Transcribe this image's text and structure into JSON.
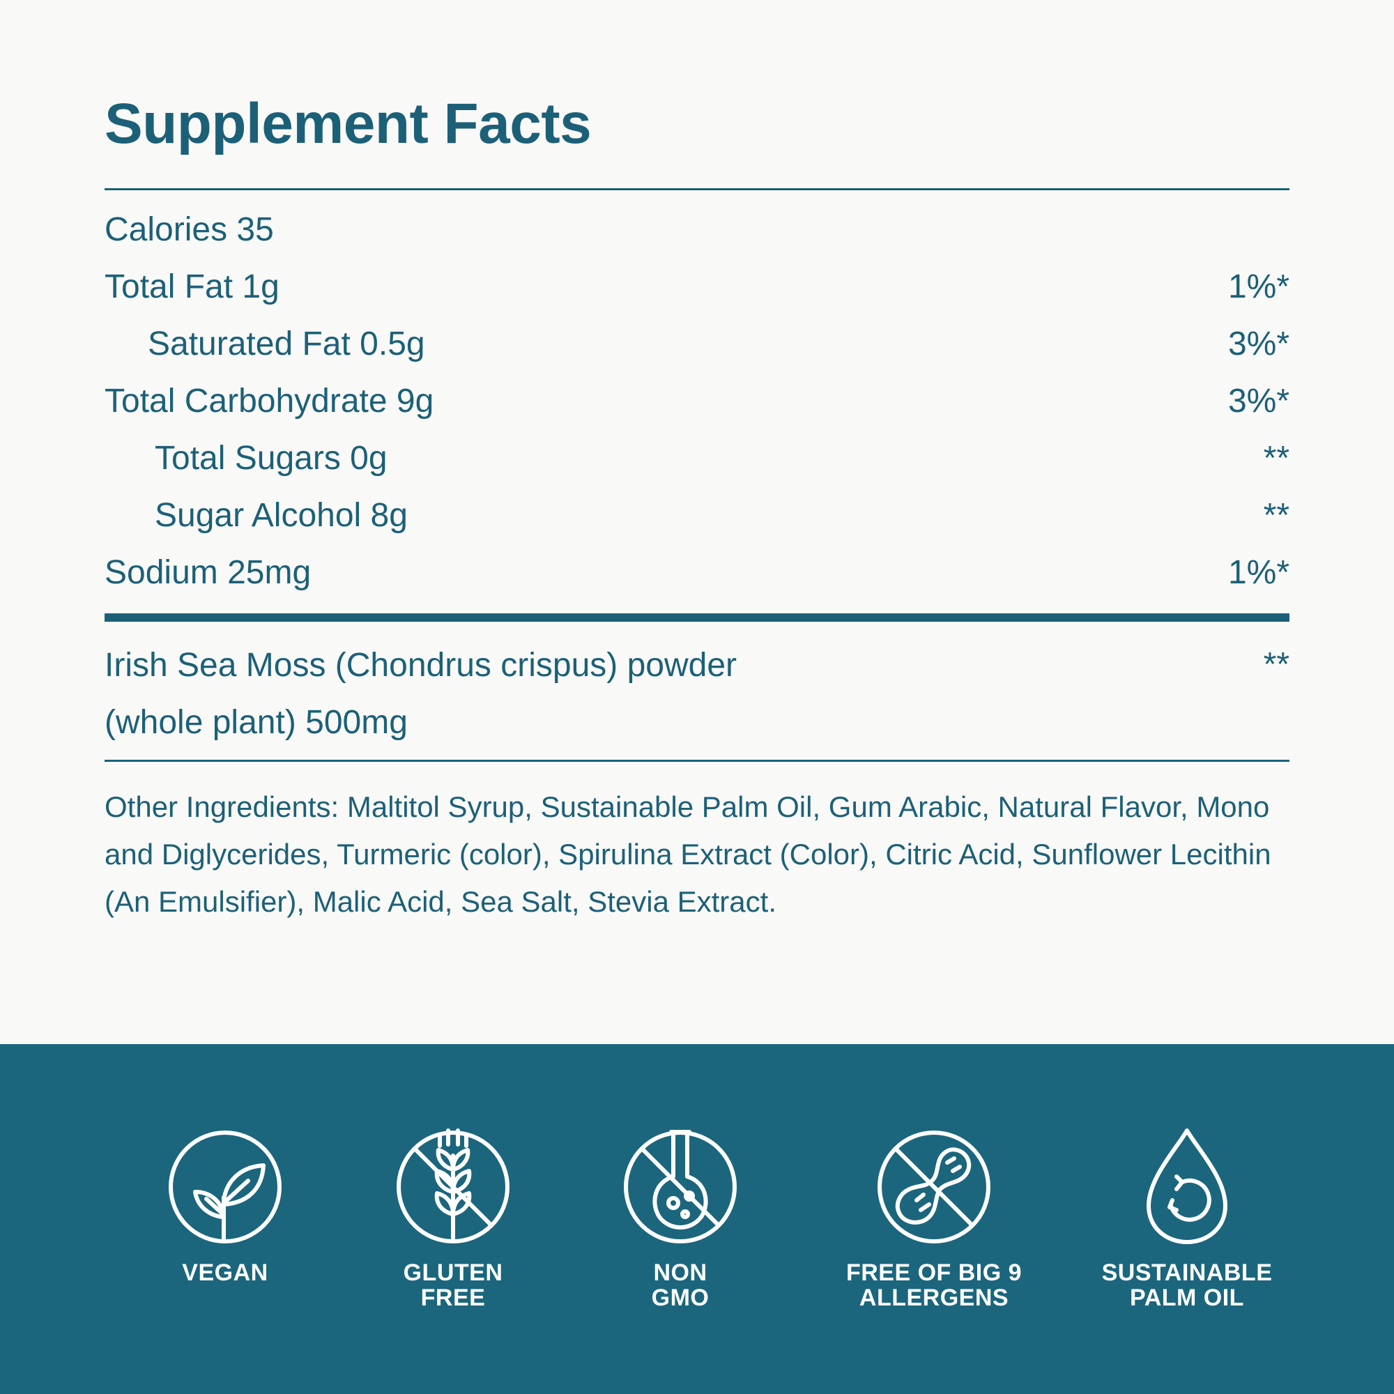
{
  "title": "Supplement Facts",
  "nutrients": [
    {
      "label": "Calories 35",
      "dv": ""
    },
    {
      "label": "Total Fat 1g",
      "dv": "1%*"
    },
    {
      "label": "Saturated Fat 0.5g",
      "dv": "3%*"
    },
    {
      "label": "Total Carbohydrate 9g",
      "dv": "3%*"
    },
    {
      "label": "Total Sugars 0g",
      "dv": "**"
    },
    {
      "label": "Sugar Alcohol 8g",
      "dv": "**"
    },
    {
      "label": "Sodium 25mg",
      "dv": "1%*"
    }
  ],
  "main_ingredient": {
    "line1": "Irish Sea Moss (Chondrus crispus) powder",
    "line2": "(whole plant) 500mg",
    "dv": "**"
  },
  "other_ingredients": "Other Ingredients: Maltitol Syrup, Sustainable Palm Oil, Gum Arabic, Natural Flavor, Mono and Diglycerides, Turmeric (color), Spirulina Extract (Color), Citric Acid, Sunflower Lecithin (An Emulsifier), Malic Acid, Sea Salt, Stevia Extract.",
  "badges": [
    {
      "icon": "vegan-leaf-icon",
      "label": "VEGAN"
    },
    {
      "icon": "gluten-free-wheat-icon",
      "label": "GLUTEN\nFREE"
    },
    {
      "icon": "non-gmo-flask-icon",
      "label": "NON\nGMO"
    },
    {
      "icon": "allergen-free-peanut-icon",
      "label": "FREE OF BIG 9\nALLERGENS"
    },
    {
      "icon": "sustainable-palm-oil-drop-icon",
      "label": "SUSTAINABLE\nPALM OIL"
    }
  ],
  "colors": {
    "text": "#1c6078",
    "band": "#1b667d",
    "background": "#f9f9f7",
    "badge_text": "#ffffff"
  }
}
